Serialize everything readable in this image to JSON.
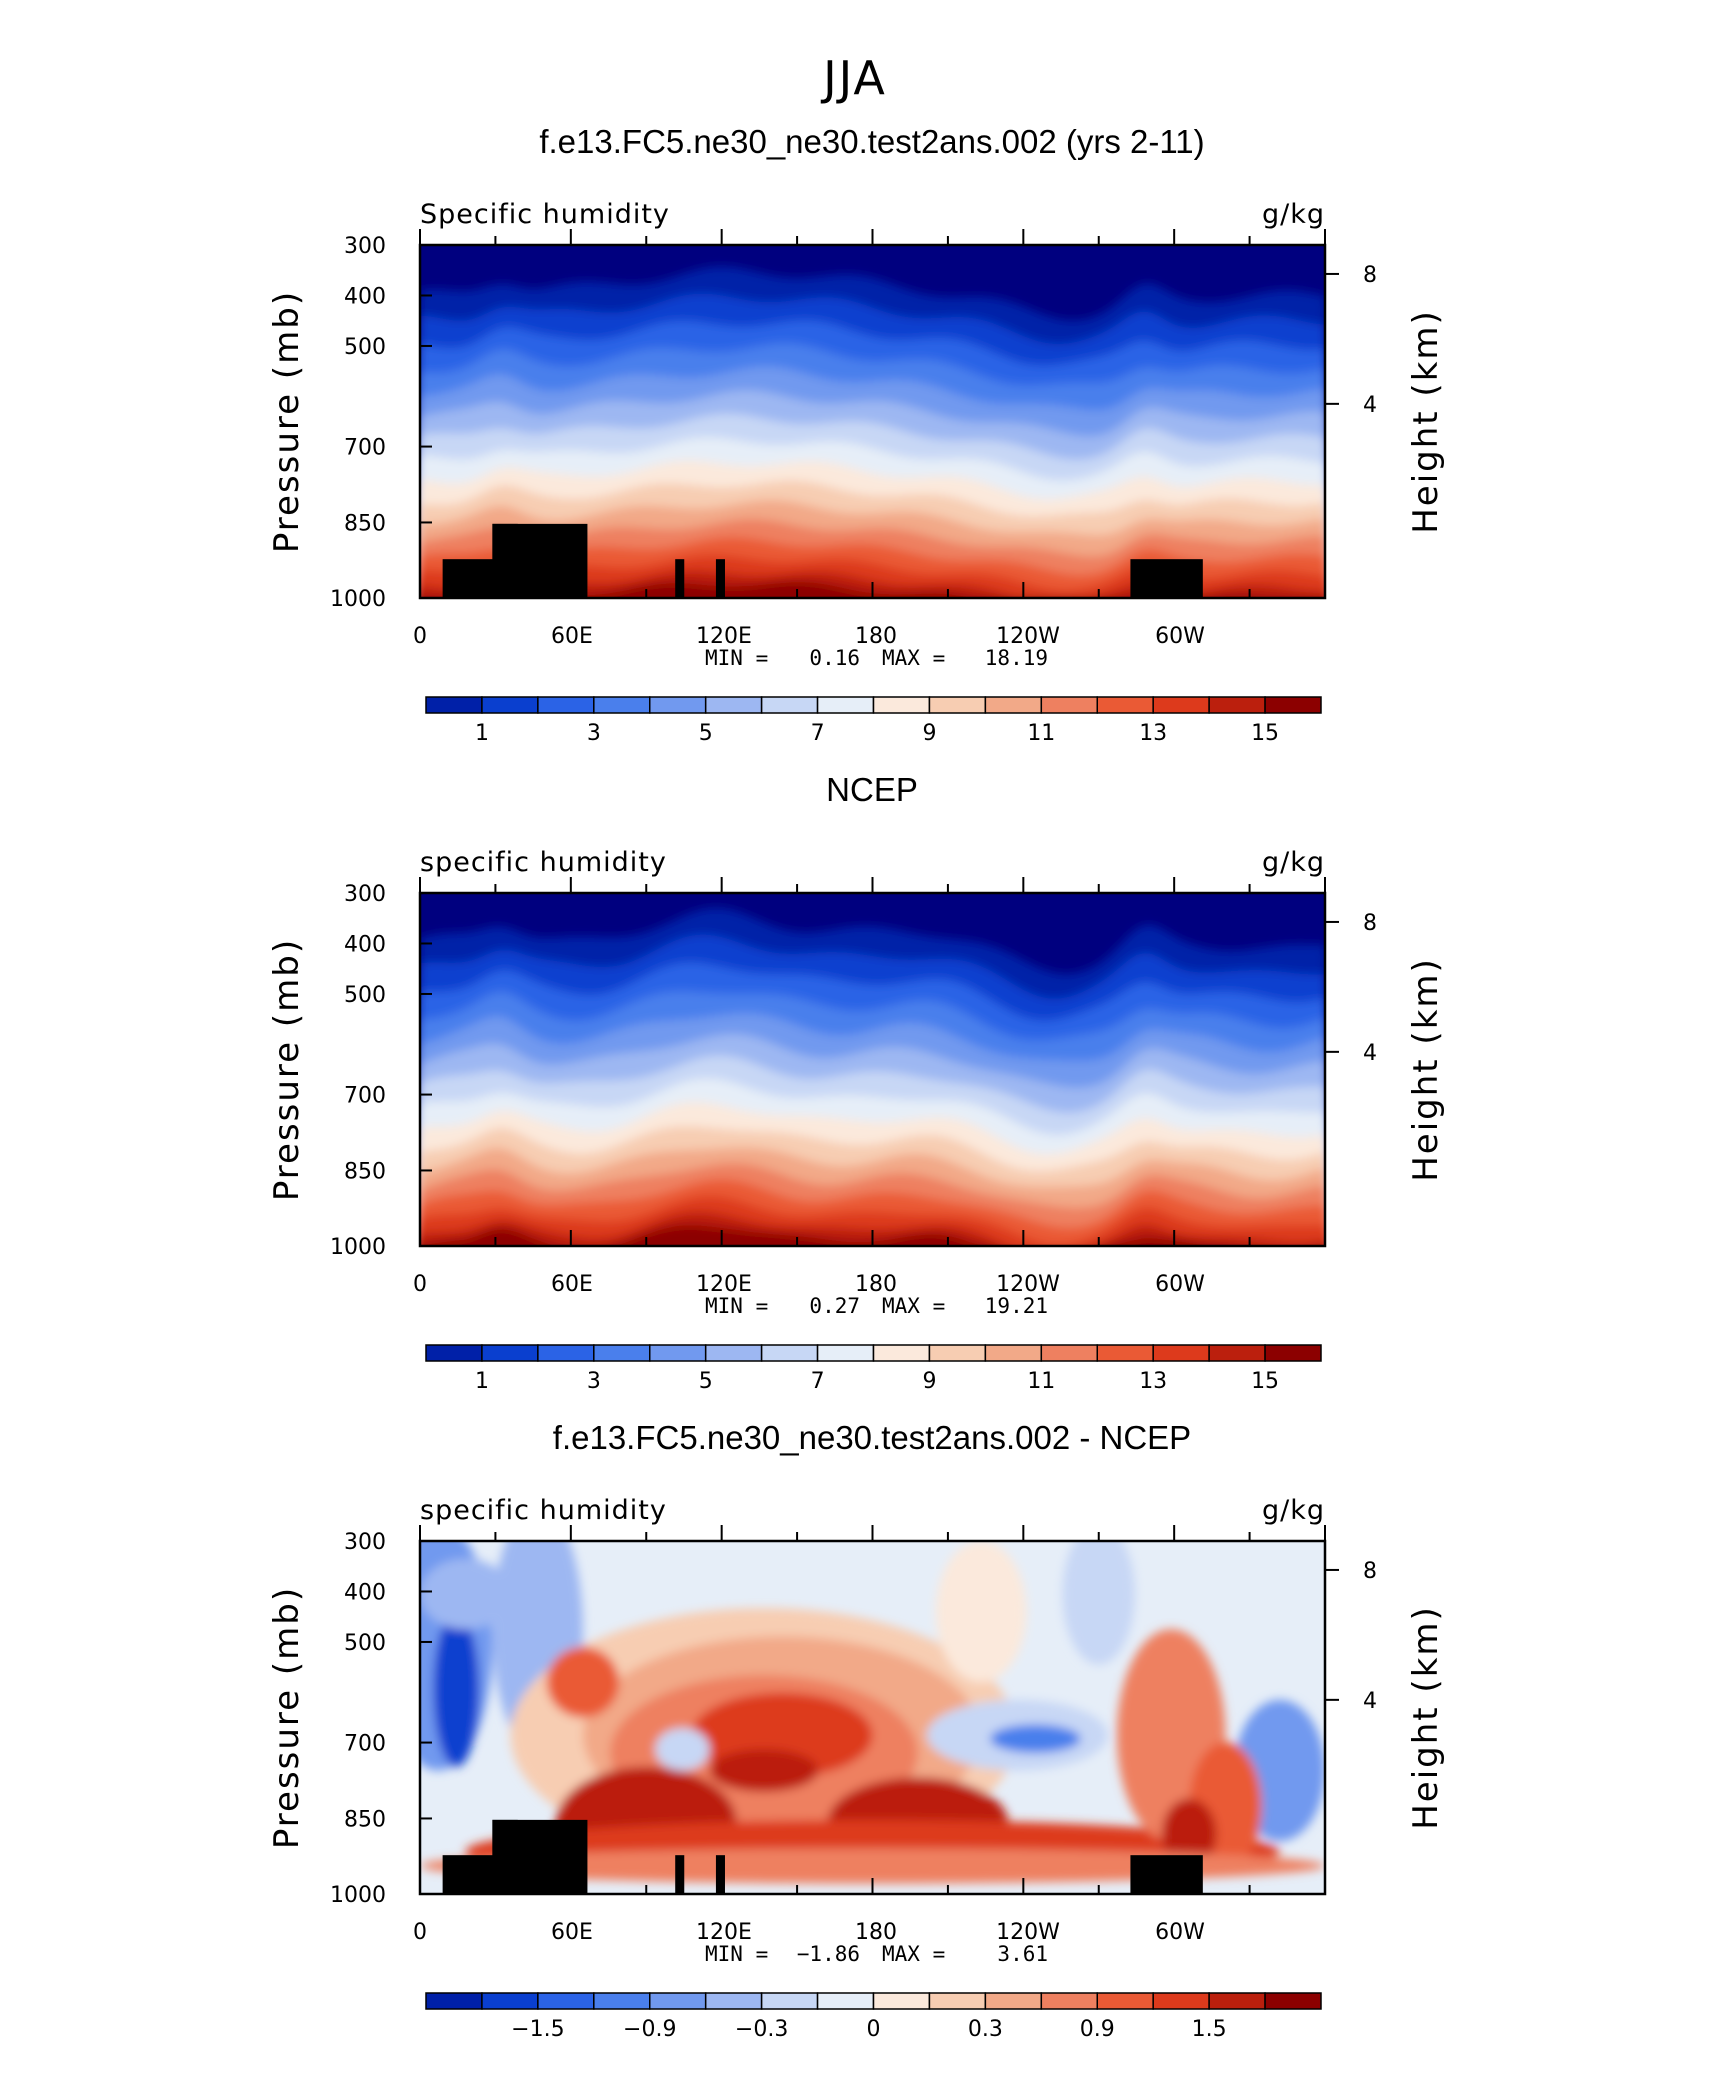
{
  "title": "JJA",
  "colors": {
    "palette": [
      "#00007f",
      "#0020a8",
      "#0a3fcf",
      "#2b63e6",
      "#4a7fec",
      "#7199ef",
      "#9db7f2",
      "#c7d7f5",
      "#e6eef8",
      "#fbe9dc",
      "#f7cdb2",
      "#f2a988",
      "#ee8060",
      "#ea5a35",
      "#dd3a1c",
      "#bb1f0d",
      "#8c0000"
    ]
  },
  "chart_data": [
    {
      "type": "heatmap",
      "title": "f.e13.FC5.ne30_ne30.test2ans.002 (yrs 2-11)",
      "left_label": "Specific humidity",
      "units": "g/kg",
      "ylabel": "Pressure (mb)",
      "ylabel_right": "Height (km)",
      "y_ticks": [
        "300",
        "400",
        "500",
        "700",
        "850",
        "1000"
      ],
      "y_right_ticks": [
        "8",
        "4"
      ],
      "x_ticks": [
        "0",
        "60E",
        "120E",
        "180",
        "120W",
        "60W"
      ],
      "min_label": "MIN =",
      "min": "0.16",
      "max_label": "MAX =",
      "max": "18.19",
      "colorbar_labels": [
        "1",
        "3",
        "5",
        "7",
        "9",
        "11",
        "13",
        "15"
      ],
      "terrain": true
    },
    {
      "type": "heatmap",
      "title": "NCEP",
      "left_label": "specific humidity",
      "units": "g/kg",
      "ylabel": "Pressure (mb)",
      "ylabel_right": "Height (km)",
      "y_ticks": [
        "300",
        "400",
        "500",
        "700",
        "850",
        "1000"
      ],
      "y_right_ticks": [
        "8",
        "4"
      ],
      "x_ticks": [
        "0",
        "60E",
        "120E",
        "180",
        "120W",
        "60W"
      ],
      "min_label": "MIN =",
      "min": "0.27",
      "max_label": "MAX =",
      "max": "19.21",
      "colorbar_labels": [
        "1",
        "3",
        "5",
        "7",
        "9",
        "11",
        "13",
        "15"
      ],
      "terrain": false
    },
    {
      "type": "heatmap",
      "title": "f.e13.FC5.ne30_ne30.test2ans.002 - NCEP",
      "left_label": "specific humidity",
      "units": "g/kg",
      "ylabel": "Pressure (mb)",
      "ylabel_right": "Height (km)",
      "y_ticks": [
        "300",
        "400",
        "500",
        "700",
        "850",
        "1000"
      ],
      "y_right_ticks": [
        "8",
        "4"
      ],
      "x_ticks": [
        "0",
        "60E",
        "120E",
        "180",
        "120W",
        "60W"
      ],
      "min_label": "MIN =",
      "min": "−1.86",
      "max_label": "MAX =",
      "max": "3.61",
      "colorbar_labels": [
        "−1.5",
        "−0.9",
        "−0.3",
        "0",
        "0.3",
        "0.9",
        "1.5"
      ],
      "terrain": true
    }
  ]
}
